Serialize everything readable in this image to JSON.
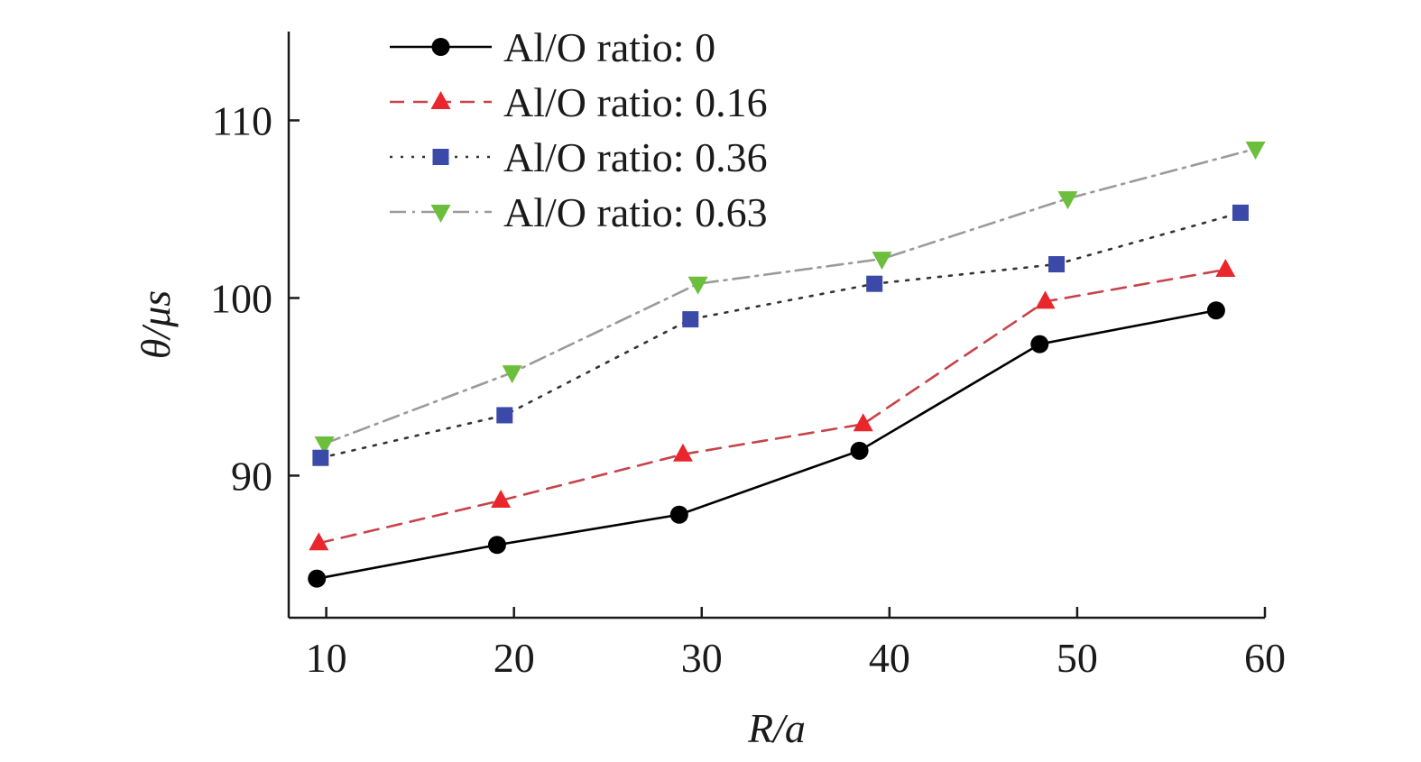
{
  "chart_data": {
    "type": "line",
    "xlabel": "R/a",
    "ylabel": "θ/μs",
    "xlim": [
      8,
      60
    ],
    "ylim": [
      82,
      115
    ],
    "xticks": [
      10,
      20,
      30,
      40,
      50,
      60
    ],
    "yticks": [
      90,
      100,
      110
    ],
    "grid": false,
    "legend_position": "top-left",
    "series": [
      {
        "name": "Al/O ratio: 0",
        "color": "#000000",
        "marker": "circle",
        "dash": "solid",
        "x": [
          9.5,
          19.1,
          28.8,
          38.4,
          48.0,
          57.4
        ],
        "y": [
          84.2,
          86.1,
          87.8,
          91.4,
          97.4,
          99.3
        ]
      },
      {
        "name": "Al/O ratio: 0.16",
        "color": "#e8262b",
        "marker": "triangle-up",
        "dash": "dashed",
        "x": [
          9.6,
          19.3,
          29.0,
          38.6,
          48.3,
          57.9
        ],
        "y": [
          86.2,
          88.6,
          91.2,
          92.9,
          99.8,
          101.6
        ]
      },
      {
        "name": "Al/O ratio: 0.36",
        "color": "#3b4aa8",
        "marker": "square",
        "dash": "dotted",
        "x": [
          9.7,
          19.5,
          29.4,
          39.2,
          48.9,
          58.7
        ],
        "y": [
          91.0,
          93.4,
          98.8,
          100.8,
          101.9,
          104.8
        ]
      },
      {
        "name": "Al/O ratio: 0.63",
        "color": "#6cbf3c",
        "marker": "triangle-down",
        "dash": "dashdot",
        "x": [
          9.9,
          19.9,
          29.8,
          39.6,
          49.5,
          59.5
        ],
        "y": [
          91.8,
          95.8,
          100.8,
          102.2,
          105.6,
          108.4
        ]
      }
    ]
  }
}
